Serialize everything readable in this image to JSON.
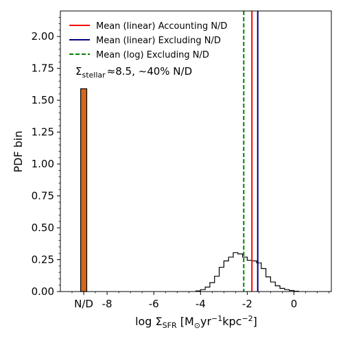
{
  "chart_data": {
    "type": "bar",
    "xlabel": {
      "prefix": "log Σ",
      "sub": "SFR",
      "unit_open": " [M",
      "sun": "⊙",
      "unit_mid": "yr",
      "sup1": "−1",
      "unit_kpc": "kpc",
      "sup2": "−2",
      "unit_close": "]"
    },
    "ylabel": "PDF bin",
    "xlim": [
      -10,
      1.6
    ],
    "ylim": [
      0,
      2.2
    ],
    "x_ticks": [
      {
        "value": -9,
        "label": "N/D"
      },
      {
        "value": -8,
        "label": "-8"
      },
      {
        "value": -6,
        "label": "-6"
      },
      {
        "value": -4,
        "label": "-4"
      },
      {
        "value": -2,
        "label": "-2"
      },
      {
        "value": 0,
        "label": "0"
      }
    ],
    "y_ticks": [
      {
        "value": 0,
        "label": "0.00"
      },
      {
        "value": 0.25,
        "label": "0.25"
      },
      {
        "value": 0.5,
        "label": "0.50"
      },
      {
        "value": 0.75,
        "label": "0.75"
      },
      {
        "value": 1.0,
        "label": "1.00"
      },
      {
        "value": 1.25,
        "label": "1.25"
      },
      {
        "value": 1.5,
        "label": "1.50"
      },
      {
        "value": 1.75,
        "label": "1.75"
      },
      {
        "value": 2.0,
        "label": "2.00"
      }
    ],
    "nd_bar": {
      "x": -9,
      "width": 0.26,
      "value": 1.59,
      "color": "#d2691e"
    },
    "histogram": {
      "bin_edges": [
        -4.2,
        -4.0,
        -3.8,
        -3.6,
        -3.4,
        -3.2,
        -3.0,
        -2.8,
        -2.6,
        -2.4,
        -2.2,
        -2.0,
        -1.8,
        -1.6,
        -1.4,
        -1.2,
        -1.0,
        -0.8,
        -0.6,
        -0.4,
        -0.2,
        0.0,
        0.2
      ],
      "values": [
        0.005,
        0.015,
        0.035,
        0.07,
        0.12,
        0.19,
        0.24,
        0.27,
        0.305,
        0.295,
        0.27,
        0.245,
        0.24,
        0.225,
        0.18,
        0.115,
        0.075,
        0.045,
        0.025,
        0.015,
        0.008,
        0.003
      ]
    },
    "vlines": [
      {
        "name": "Mean (linear) Accounting N/D",
        "x": -1.8,
        "color": "#ff0000",
        "style": "solid"
      },
      {
        "name": "Mean (linear) Excluding N/D",
        "x": -1.55,
        "color": "#000080",
        "style": "solid"
      },
      {
        "name": "Mean (log) Excluding N/D",
        "x": -2.15,
        "color": "#008000",
        "style": "dashed"
      }
    ],
    "annotation": {
      "prefix": "Σ",
      "sub": "stellar",
      "rest": "≈8.5, ∼40% N/D"
    },
    "legend_position": "upper-left"
  }
}
